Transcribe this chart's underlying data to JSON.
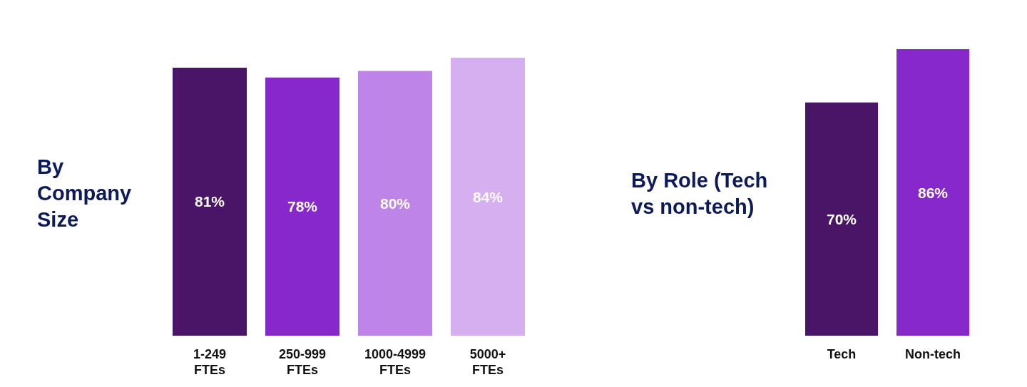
{
  "chart_data": [
    {
      "type": "bar",
      "title": "By Company Size",
      "categories": [
        "1-249 FTEs",
        "250-999 FTEs",
        "1000-4999 FTEs",
        "5000+ FTEs"
      ],
      "values": [
        81,
        78,
        80,
        84
      ],
      "colors": [
        "#4a1566",
        "#8628cc",
        "#be84e8",
        "#d5aff0"
      ],
      "value_labels": [
        "81%",
        "78%",
        "80%",
        "84%"
      ]
    },
    {
      "type": "bar",
      "title": "By Role (Tech vs non-tech)",
      "categories": [
        "Tech",
        "Non-tech"
      ],
      "values": [
        70,
        86
      ],
      "colors": [
        "#4a1566",
        "#8628cc"
      ],
      "value_labels": [
        "70%",
        "86%"
      ]
    }
  ]
}
